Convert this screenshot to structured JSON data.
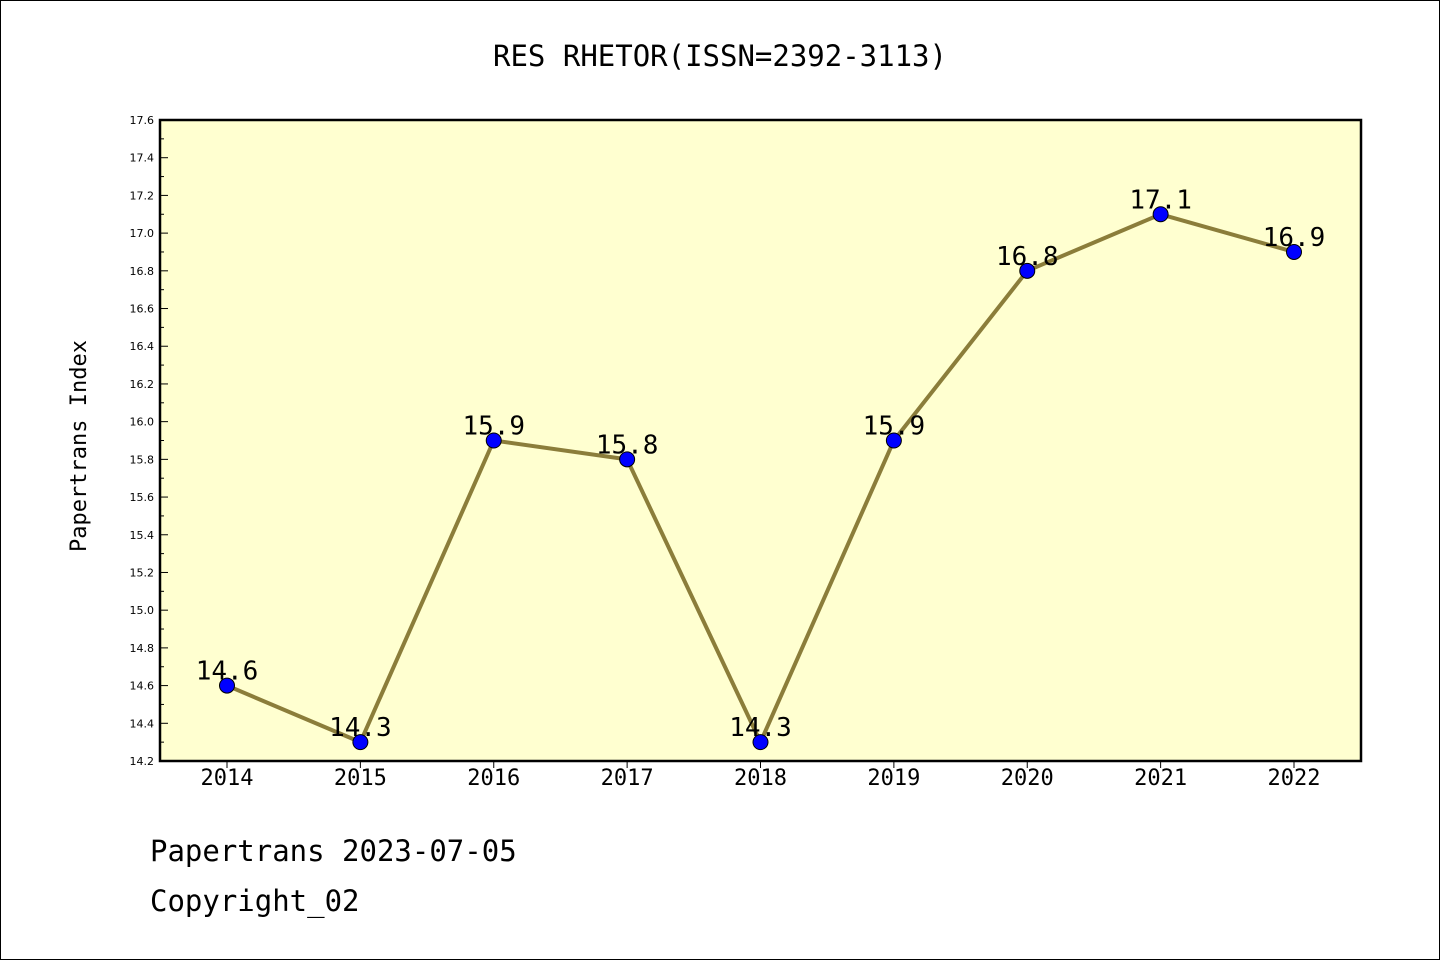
{
  "chart_data": {
    "type": "line",
    "title": "RES RHETOR(ISSN=2392-3113)",
    "xlabel": "",
    "ylabel": "Papertrans Index",
    "categories": [
      "2014",
      "2015",
      "2016",
      "2017",
      "2018",
      "2019",
      "2020",
      "2021",
      "2022"
    ],
    "series": [
      {
        "values": [
          14.6,
          14.3,
          15.9,
          15.8,
          14.3,
          15.9,
          16.8,
          17.1,
          16.9
        ]
      }
    ],
    "data_labels": [
      "14.6",
      "14.3",
      "15.9",
      "15.8",
      "14.3",
      "15.9",
      "16.8",
      "17.1",
      "16.9"
    ],
    "ylim": [
      14.2,
      17.6
    ],
    "yticks": [
      "14.2",
      "14.4",
      "14.6",
      "14.8",
      "15.0",
      "15.2",
      "15.4",
      "15.6",
      "15.8",
      "16.0",
      "16.2",
      "16.4",
      "16.6",
      "16.8",
      "17.0",
      "17.2",
      "17.4",
      "17.6"
    ],
    "grid": false,
    "legend": "none",
    "colors": {
      "plot_background": "#ffffd0",
      "line": "#8b7d3a",
      "marker": "#0000ff"
    }
  },
  "footer": {
    "line1": "Papertrans 2023-07-05",
    "line2": "Copyright_02"
  }
}
